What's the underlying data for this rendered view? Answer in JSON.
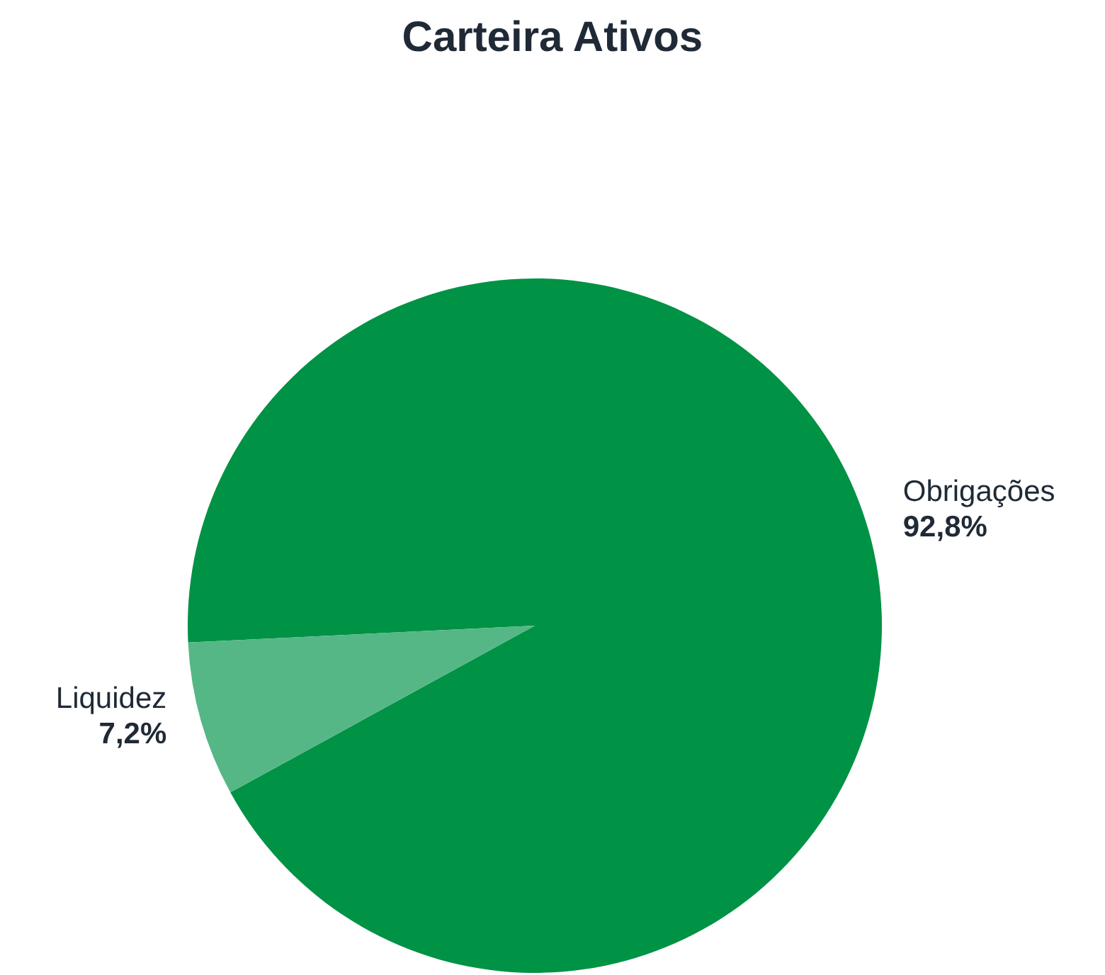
{
  "chart_data": {
    "type": "pie",
    "title": "Carteira Ativos",
    "categories": [
      "Obrigações",
      "Liquidez"
    ],
    "values": [
      92.8,
      7.2
    ],
    "colors": [
      "#009245",
      "#55b786"
    ],
    "value_labels": [
      "92,8%",
      "7,2%"
    ]
  }
}
